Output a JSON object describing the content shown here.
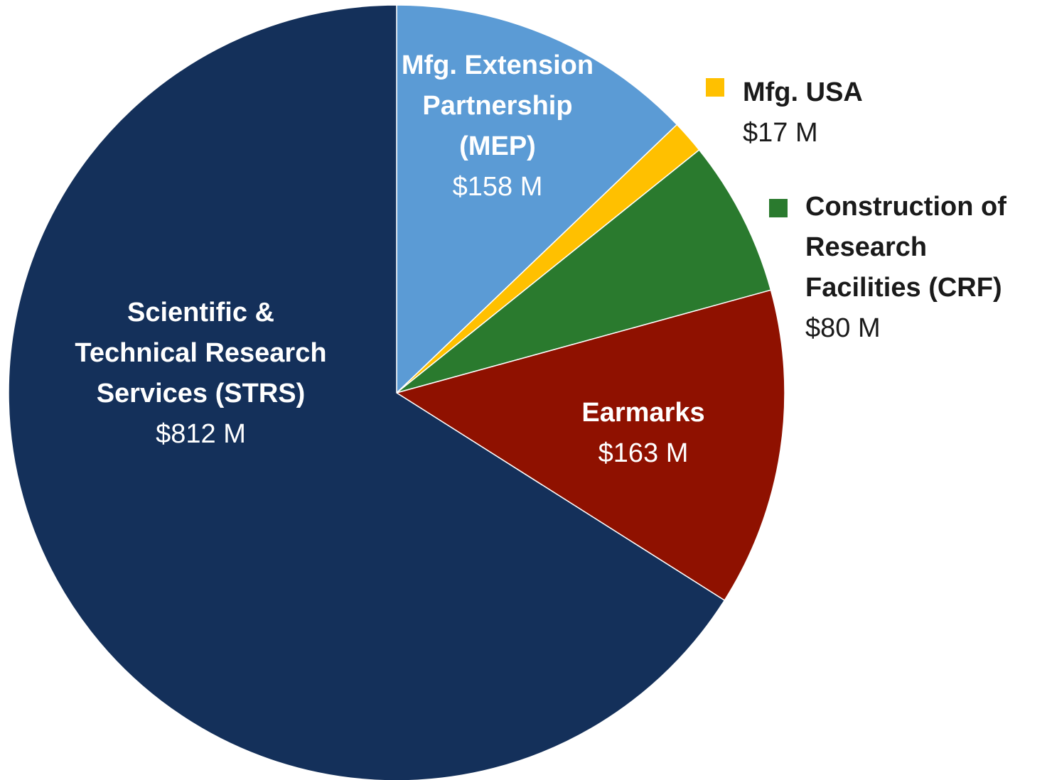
{
  "chart_data": {
    "type": "pie",
    "categories": [
      "Mfg. Extension Partnership (MEP)",
      "Mfg. USA",
      "Construction of Research Facilities (CRF)",
      "Earmarks",
      "Scientific & Technical Research Services (STRS)"
    ],
    "values": [
      158,
      17,
      80,
      163,
      812
    ],
    "value_labels": [
      "$158 M",
      "$17 M",
      "$80 M",
      "$163 M",
      "$812 M"
    ],
    "colors": [
      "#5b9bd5",
      "#ffc000",
      "#2a7a2e",
      "#8f1100",
      "#14305a"
    ]
  }
}
